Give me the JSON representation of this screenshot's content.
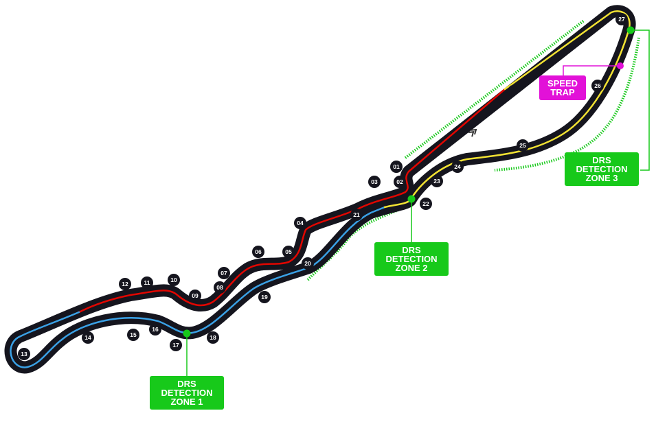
{
  "turns": [
    "01",
    "02",
    "03",
    "04",
    "05",
    "06",
    "07",
    "08",
    "09",
    "10",
    "11",
    "12",
    "13",
    "14",
    "15",
    "16",
    "17",
    "18",
    "19",
    "20",
    "21",
    "22",
    "23",
    "24",
    "25",
    "26",
    "27"
  ],
  "labels": {
    "drs_zone_1": "DRS\nDETECTION\nZONE 1",
    "drs_zone_2": "DRS\nDETECTION\nZONE 2",
    "drs_zone_3": "DRS\nDETECTION\nZONE 3",
    "speed_trap": "SPEED\nTRAP"
  },
  "colors": {
    "track": "#15151e",
    "sector_1": "#e10600",
    "sector_2": "#3aa1e6",
    "sector_3": "#f2e233",
    "drs": "#17c91a",
    "speed_trap": "#e211d8"
  },
  "icons": [
    "chequered-flag-icon",
    "direction-chevrons-icon"
  ]
}
